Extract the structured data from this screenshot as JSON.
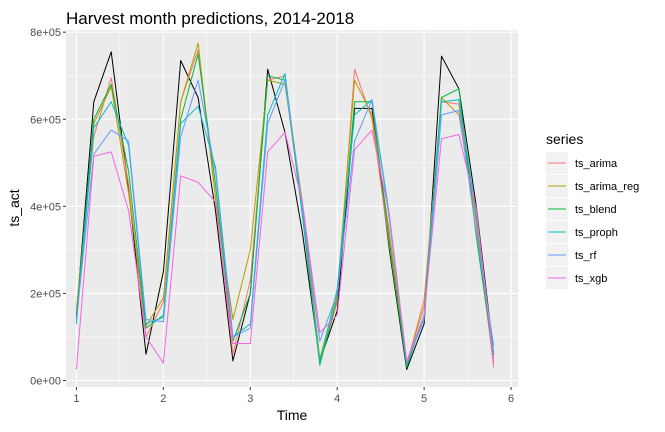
{
  "chart_data": {
    "type": "line",
    "title": "Harvest month predictions, 2014-2018",
    "xlabel": "Time",
    "ylabel": "ts_act",
    "xlim": [
      0.88,
      6.08
    ],
    "ylim": [
      -15000,
      805000
    ],
    "x_ticks": [
      1,
      2,
      3,
      4,
      5,
      6
    ],
    "x_tick_labels": [
      "1",
      "2",
      "3",
      "4",
      "5",
      "6"
    ],
    "y_ticks": [
      0,
      200000,
      400000,
      600000,
      800000
    ],
    "y_tick_labels": [
      "0e+00",
      "2e+05",
      "4e+05",
      "6e+05",
      "8e+05"
    ],
    "grid": true,
    "legend_title": "series",
    "legend_position": "right",
    "x": [
      1.0,
      1.2,
      1.4,
      1.6,
      1.8,
      2.0,
      2.2,
      2.4,
      2.6,
      2.8,
      3.0,
      3.2,
      3.4,
      3.6,
      3.8,
      4.0,
      4.2,
      4.4,
      4.6,
      4.8,
      5.0,
      5.2,
      5.4,
      5.6,
      5.8
    ],
    "actual": {
      "name": "ts_act",
      "color": "#000000",
      "values": [
        150000,
        640000,
        755000,
        440000,
        60000,
        250000,
        735000,
        650000,
        390000,
        45000,
        200000,
        715000,
        570000,
        340000,
        45000,
        160000,
        625000,
        625000,
        300000,
        25000,
        130000,
        745000,
        670000,
        400000,
        60000
      ]
    },
    "series": [
      {
        "name": "ts_arima",
        "color": "#F8766D",
        "values": [
          165000,
          560000,
          695000,
          450000,
          100000,
          180000,
          640000,
          760000,
          420000,
          60000,
          230000,
          690000,
          700000,
          400000,
          40000,
          180000,
          715000,
          600000,
          310000,
          35000,
          185000,
          640000,
          635000,
          360000,
          30000
        ]
      },
      {
        "name": "ts_arima_reg",
        "color": "#B79F00",
        "values": [
          155000,
          590000,
          675000,
          430000,
          125000,
          190000,
          640000,
          775000,
          420000,
          140000,
          300000,
          690000,
          680000,
          410000,
          50000,
          200000,
          690000,
          610000,
          340000,
          40000,
          170000,
          650000,
          610000,
          370000,
          60000
        ]
      },
      {
        "name": "ts_blend",
        "color": "#00BA38",
        "values": [
          145000,
          600000,
          680000,
          480000,
          120000,
          150000,
          600000,
          750000,
          450000,
          90000,
          200000,
          700000,
          690000,
          380000,
          35000,
          190000,
          640000,
          640000,
          320000,
          30000,
          150000,
          650000,
          670000,
          330000,
          50000
        ]
      },
      {
        "name": "ts_proph",
        "color": "#00BFC4",
        "values": [
          130000,
          580000,
          640000,
          540000,
          130000,
          145000,
          590000,
          630000,
          490000,
          100000,
          130000,
          610000,
          705000,
          380000,
          40000,
          210000,
          610000,
          645000,
          380000,
          40000,
          150000,
          640000,
          645000,
          380000,
          60000
        ]
      },
      {
        "name": "ts_rf",
        "color": "#619CFF",
        "values": [
          140000,
          520000,
          575000,
          550000,
          140000,
          135000,
          560000,
          690000,
          480000,
          100000,
          120000,
          590000,
          690000,
          400000,
          90000,
          200000,
          550000,
          645000,
          370000,
          40000,
          140000,
          610000,
          620000,
          340000,
          80000
        ]
      },
      {
        "name": "ts_xgb",
        "color": "#F564E3",
        "values": [
          25000,
          515000,
          525000,
          390000,
          100000,
          40000,
          470000,
          455000,
          410000,
          85000,
          85000,
          525000,
          570000,
          410000,
          110000,
          150000,
          530000,
          575000,
          380000,
          45000,
          150000,
          555000,
          565000,
          395000,
          40000
        ]
      }
    ]
  }
}
